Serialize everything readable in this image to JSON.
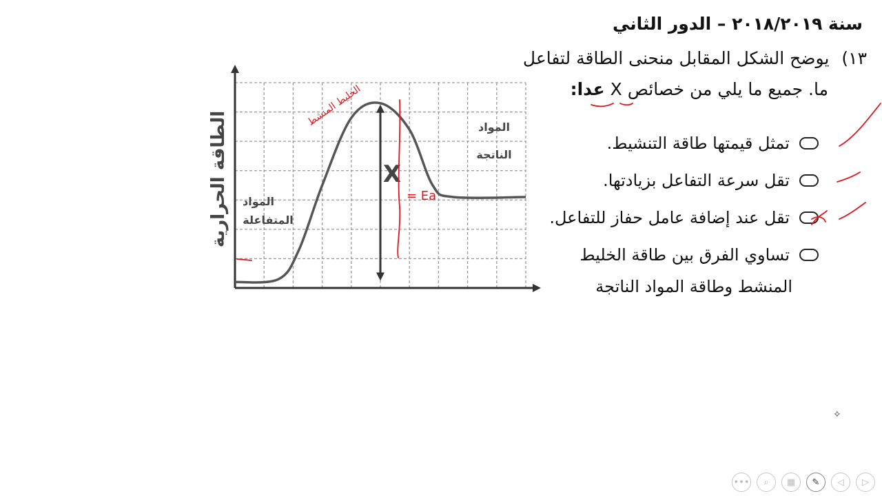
{
  "heading": "سنة ٢٠١٨/٢٠١٩ – الدور الثاني",
  "question": {
    "number": "١٣)",
    "line1": "يوضح الشكل المقابل منحنى الطاقة لتفاعل",
    "line2_text": "ما. جميع ما يلي من خصائص X",
    "line2_except": "عدا:"
  },
  "options": [
    {
      "text": "تمثل قيمتها طاقة التنشيط."
    },
    {
      "text": "تقل سرعة التفاعل بزيادتها."
    },
    {
      "text": "تقل عند إضافة عامل حفاز للتفاعل."
    },
    {
      "text": "تساوي الفرق بين طاقة الخليط",
      "line2": "المنشط وطاقة المواد الناتجة"
    }
  ],
  "chart_data": {
    "type": "line",
    "ylabel": "الطاقة الحرارية",
    "xlabel": "",
    "reactants_label_1": "المواد",
    "reactants_label_2": "المتفاعلة",
    "products_label_1": "المواد",
    "products_label_2": "الناتجة",
    "marker_label": "X",
    "grid": true,
    "x_range": [
      0,
      10
    ],
    "y_range": [
      0,
      7
    ],
    "curve": [
      [
        0,
        0.2
      ],
      [
        1.5,
        0.3
      ],
      [
        2.2,
        1.3
      ],
      [
        3,
        3.5
      ],
      [
        4,
        5.8
      ],
      [
        5,
        6.3
      ],
      [
        6,
        5.4
      ],
      [
        6.8,
        3.5
      ],
      [
        7.5,
        3.1
      ],
      [
        10,
        3.1
      ]
    ],
    "arrow_x": 5,
    "arrow_from": 0.2,
    "arrow_to": 6.3
  },
  "annotations": {
    "color": "#e0151b",
    "peak_note": "الخليط المنشط",
    "ea_note": "= Ea"
  },
  "toolbar": [
    "more-icon",
    "zoom-icon",
    "slides-icon",
    "pen-icon",
    "prev-icon",
    "next-icon"
  ]
}
